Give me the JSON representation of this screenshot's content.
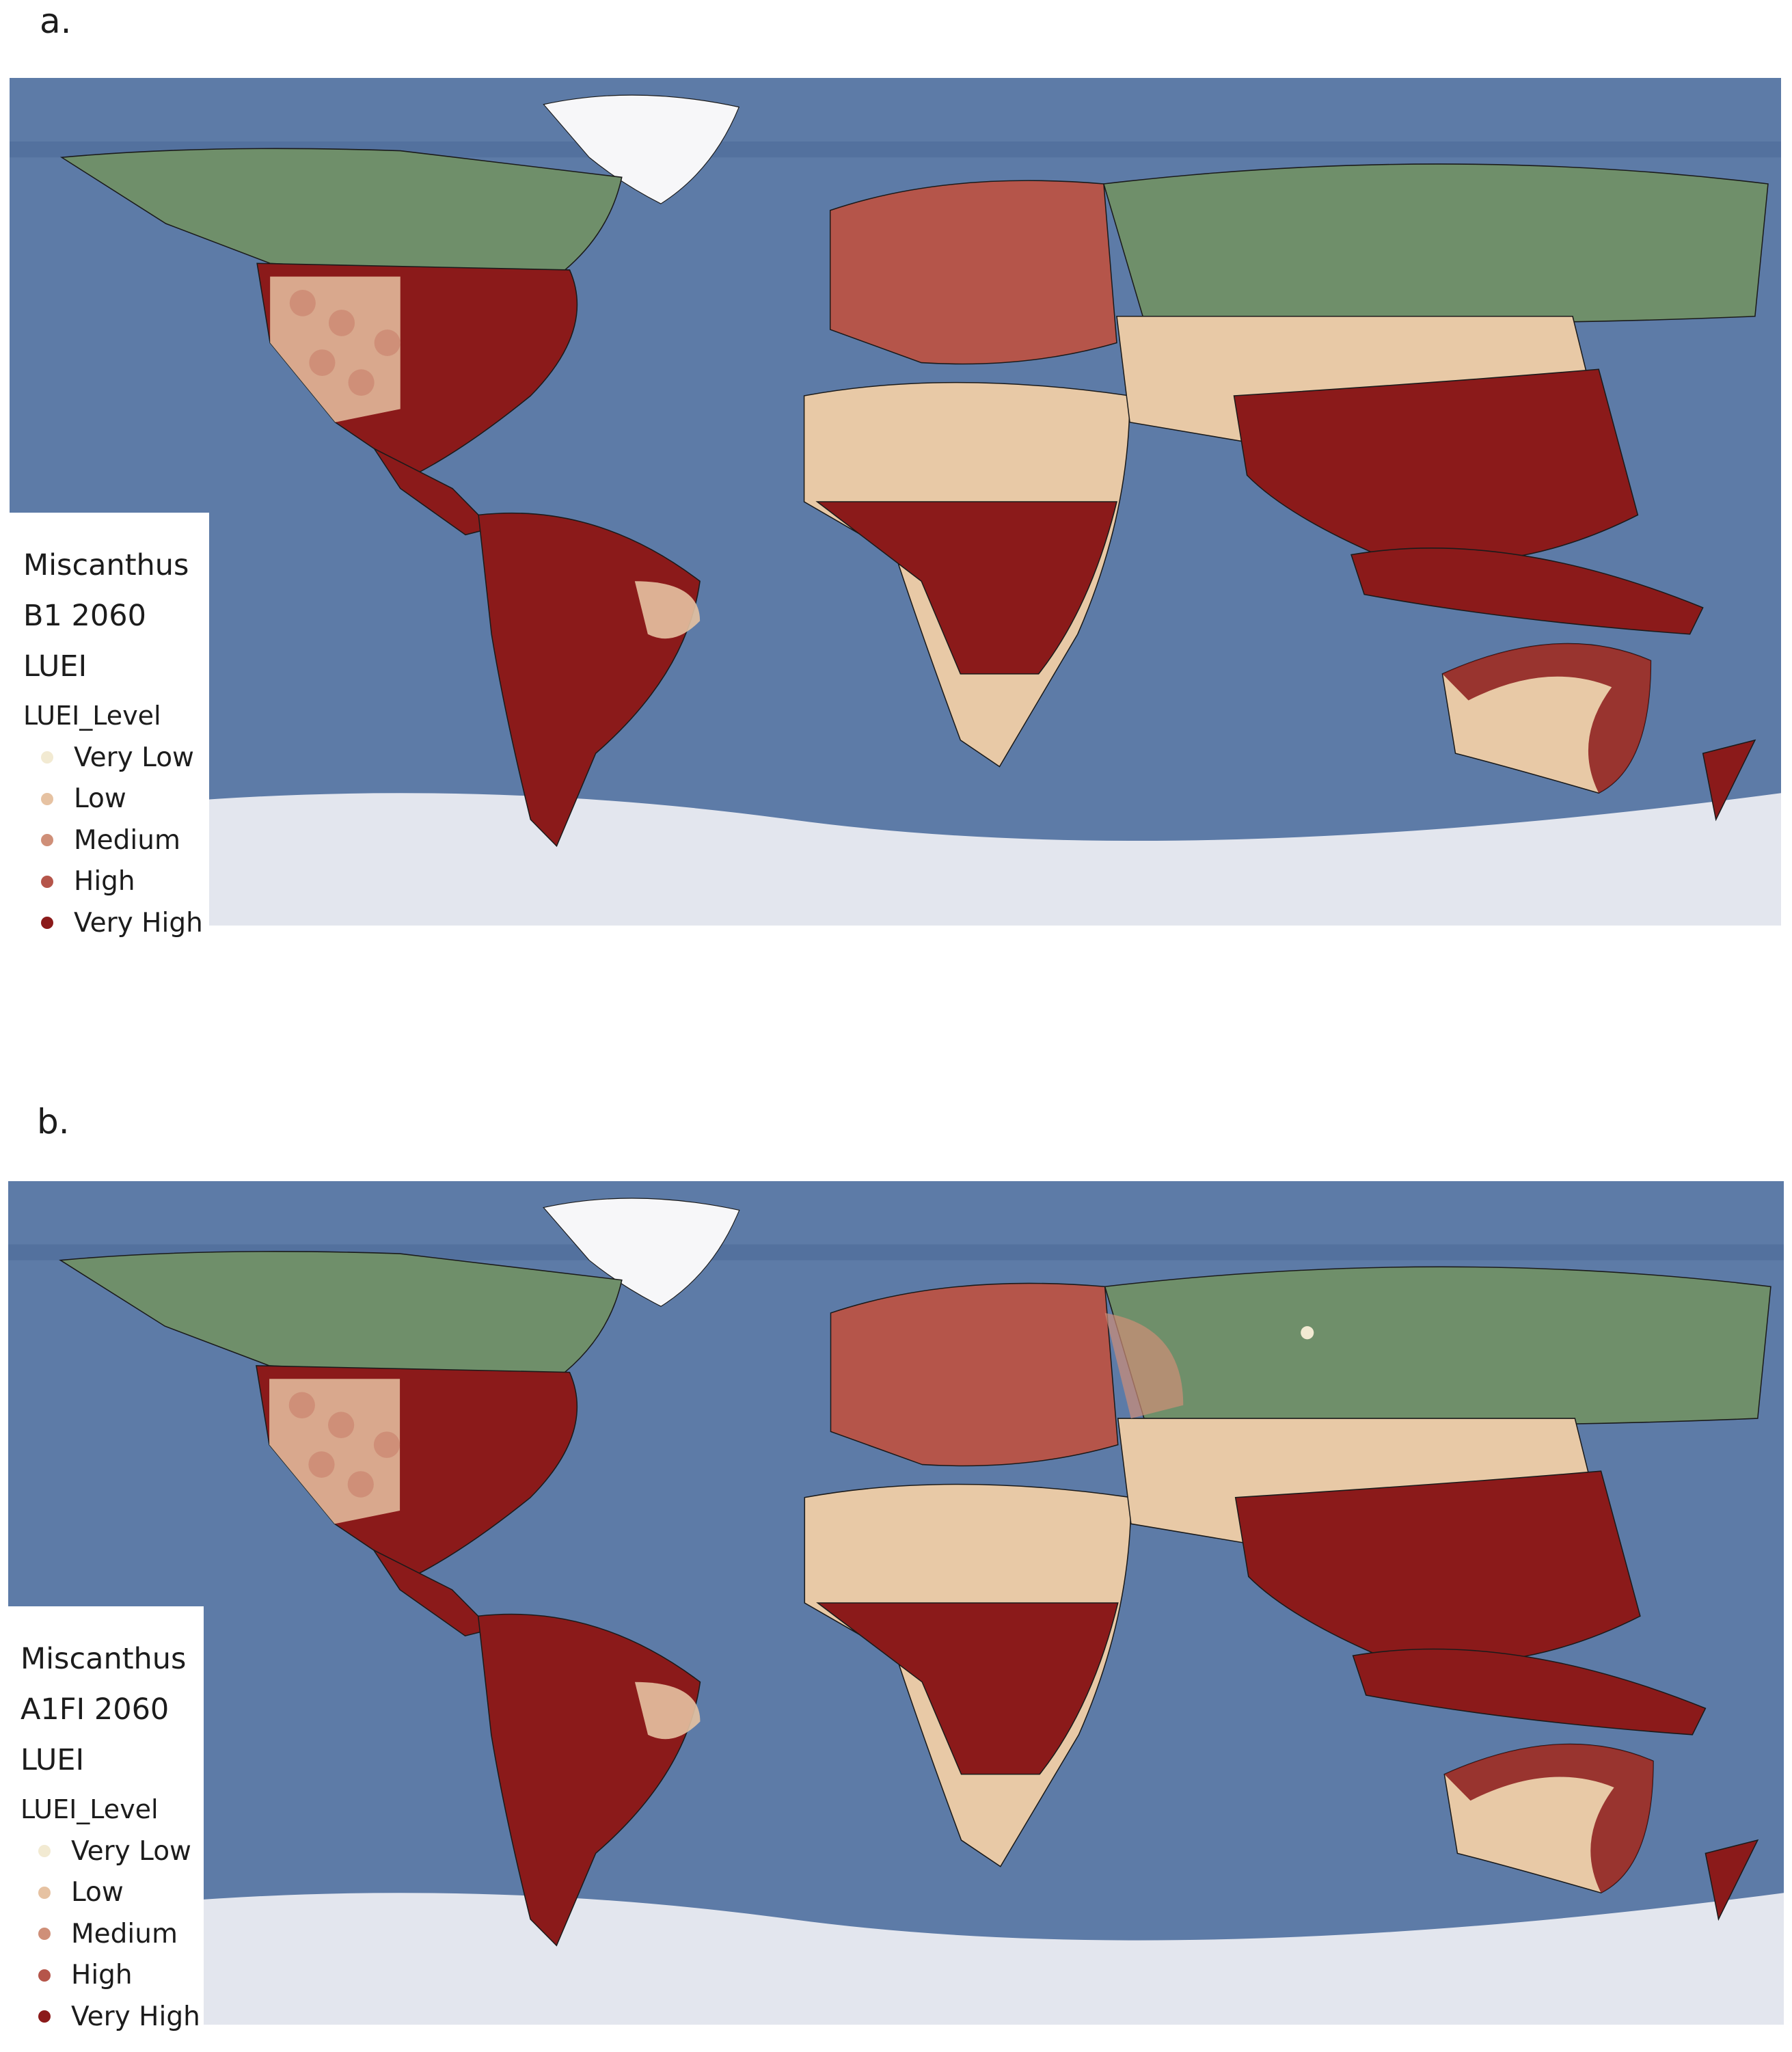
{
  "palette": {
    "ocean": "#5d7ba7",
    "ocean_dark": "#4d6b98",
    "ice": "#e3e6ee",
    "boreal": "#6f8f6a",
    "desert": "#e8c9a6",
    "very_low": "#f2ead2",
    "low": "#e6c2a2",
    "medium": "#cf8f78",
    "high": "#b5554a",
    "very_high": "#8b1a1a",
    "border": "#1a1a1a"
  },
  "panels": [
    {
      "letter": "a.",
      "legend": {
        "title_lines": [
          "Miscanthus",
          "B1 2060",
          "LUEI"
        ],
        "field": "LUEI_Level",
        "items": [
          {
            "label": "Very Low",
            "color": "#f2ead2"
          },
          {
            "label": "Low",
            "color": "#e6c2a2"
          },
          {
            "label": "Medium",
            "color": "#cf8f78"
          },
          {
            "label": "High",
            "color": "#b5554a"
          },
          {
            "label": "Very High",
            "color": "#8b1a1a"
          }
        ]
      }
    },
    {
      "letter": "b.",
      "legend": {
        "title_lines": [
          "Miscanthus",
          "A1FI 2060",
          "LUEI"
        ],
        "field": "LUEI_Level",
        "items": [
          {
            "label": "Very Low",
            "color": "#f2ead2"
          },
          {
            "label": "Low",
            "color": "#e6c2a2"
          },
          {
            "label": "Medium",
            "color": "#cf8f78"
          },
          {
            "label": "High",
            "color": "#b5554a"
          },
          {
            "label": "Very High",
            "color": "#8b1a1a"
          }
        ]
      }
    }
  ]
}
